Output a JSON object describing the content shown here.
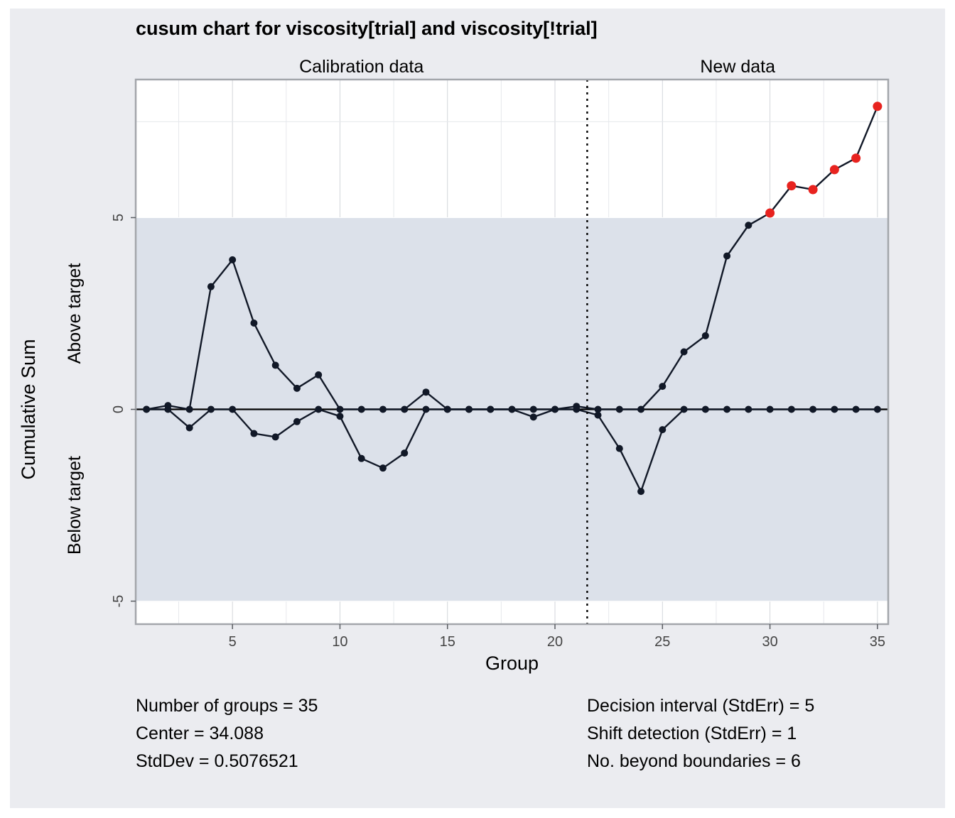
{
  "chart_data": {
    "type": "line",
    "title": "cusum chart for viscosity[trial] and viscosity[!trial]",
    "xlabel": "Group",
    "ylabel": "Cumulative Sum",
    "above_label": "Above target",
    "below_label": "Below target",
    "section_labels": [
      "Calibration data",
      "New data"
    ],
    "xlim": [
      0.5,
      35.5
    ],
    "ylim": [
      -5.6,
      8.6
    ],
    "xticks": [
      5,
      10,
      15,
      20,
      25,
      30,
      35
    ],
    "yticks": [
      -5,
      0,
      5
    ],
    "ytick_labels": [
      "-5",
      "0",
      "5"
    ],
    "decision_limits": [
      -5,
      5
    ],
    "separator_x": 21.5,
    "grid": true,
    "colors": {
      "panel_bg": "#ebecf0",
      "band": "#dce1ea",
      "line": "#111827",
      "point": "#111827",
      "violation": "#e8231f"
    },
    "x": [
      1,
      2,
      3,
      4,
      5,
      6,
      7,
      8,
      9,
      10,
      11,
      12,
      13,
      14,
      15,
      16,
      17,
      18,
      19,
      20,
      21,
      22,
      23,
      24,
      25,
      26,
      27,
      28,
      29,
      30,
      31,
      32,
      33,
      34,
      35
    ],
    "series": [
      {
        "values": [
          0,
          0.1,
          0,
          3.2,
          3.9,
          2.25,
          1.15,
          0.55,
          0.9,
          0,
          0,
          0,
          0,
          0.45,
          0,
          0,
          0,
          0,
          0,
          0,
          0.08,
          0,
          0,
          0,
          0.6,
          1.5,
          1.92,
          4.0,
          4.8,
          5.12,
          5.83,
          5.73,
          6.25,
          6.55,
          7.9
        ]
      },
      {
        "values": [
          0,
          0,
          -0.48,
          0,
          0,
          -0.63,
          -0.72,
          -0.32,
          0,
          -0.18,
          -1.28,
          -1.53,
          -1.14,
          0,
          0,
          0,
          0,
          0,
          -0.2,
          0,
          0,
          -0.15,
          -1.02,
          -2.14,
          -0.53,
          0,
          0,
          0,
          0,
          0,
          0,
          0,
          0,
          0,
          0
        ]
      }
    ]
  },
  "stats": {
    "left": [
      "Number of groups = 35",
      "Center = 34.088",
      "StdDev = 0.5076521"
    ],
    "right": [
      "Decision interval (StdErr) = 5",
      "Shift detection (StdErr) = 1",
      "No. beyond boundaries = 6"
    ]
  }
}
